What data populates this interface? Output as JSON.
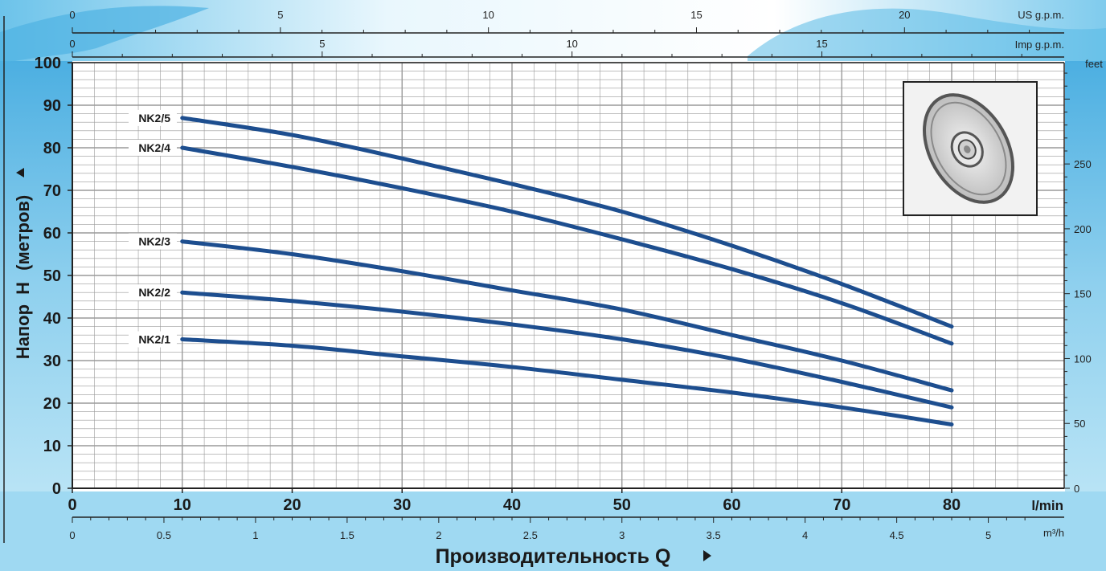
{
  "colors": {
    "curve": "#1d4e8f",
    "grid": "#9a9a9a",
    "axis": "#222222",
    "background_water": "#8fd0ee"
  },
  "images": {
    "impeller_photo": "impeller-icon"
  },
  "chart_data": {
    "type": "line",
    "title": "",
    "xlabel": "Производительность Q",
    "ylabel_prefix": "Напор",
    "ylabel_symbol": "H",
    "ylabel_suffix": "(метров)",
    "x_unit": "l/min",
    "xlim": [
      0,
      87
    ],
    "ylim": [
      0,
      100
    ],
    "x_ticks": [
      "0",
      "10",
      "20",
      "30",
      "40",
      "50",
      "60",
      "70",
      "80"
    ],
    "y_ticks": [
      "0",
      "10",
      "20",
      "30",
      "40",
      "50",
      "60",
      "70",
      "80",
      "90",
      "100"
    ],
    "secondary_axes": {
      "flow_m3h": {
        "unit": "m³/h",
        "ticks": [
          "0",
          "0.5",
          "1",
          "1.5",
          "2",
          "2.5",
          "3",
          "3.5",
          "4",
          "4.5",
          "5"
        ]
      },
      "us_gpm": {
        "unit": "US g.p.m.",
        "ticks": [
          "0",
          "5",
          "10",
          "15",
          "20"
        ]
      },
      "imp_gpm": {
        "unit": "Imp g.p.m.",
        "ticks": [
          "0",
          "5",
          "10",
          "15"
        ]
      },
      "feet": {
        "unit": "feet",
        "ticks": [
          "0",
          "50",
          "100",
          "150",
          "200",
          "250"
        ]
      }
    },
    "series": [
      {
        "name": "NK2/5",
        "x": [
          10,
          20,
          30,
          40,
          50,
          60,
          70,
          80
        ],
        "y": [
          87,
          83,
          77.5,
          71.5,
          65,
          57,
          48,
          38
        ]
      },
      {
        "name": "NK2/4",
        "x": [
          10,
          20,
          30,
          40,
          50,
          60,
          70,
          80
        ],
        "y": [
          80,
          75.5,
          70.5,
          65,
          58.5,
          51.5,
          43.5,
          34
        ]
      },
      {
        "name": "NK2/3",
        "x": [
          10,
          20,
          30,
          40,
          50,
          60,
          70,
          80
        ],
        "y": [
          58,
          55,
          51,
          46.5,
          42,
          36,
          30,
          23
        ]
      },
      {
        "name": "NK2/2",
        "x": [
          10,
          20,
          30,
          40,
          50,
          60,
          70,
          80
        ],
        "y": [
          46,
          44,
          41.5,
          38.5,
          35,
          30.5,
          25,
          19
        ]
      },
      {
        "name": "NK2/1",
        "x": [
          10,
          20,
          30,
          40,
          50,
          60,
          70,
          80
        ],
        "y": [
          35,
          33.5,
          31,
          28.5,
          25.5,
          22.5,
          19,
          15
        ]
      }
    ]
  }
}
